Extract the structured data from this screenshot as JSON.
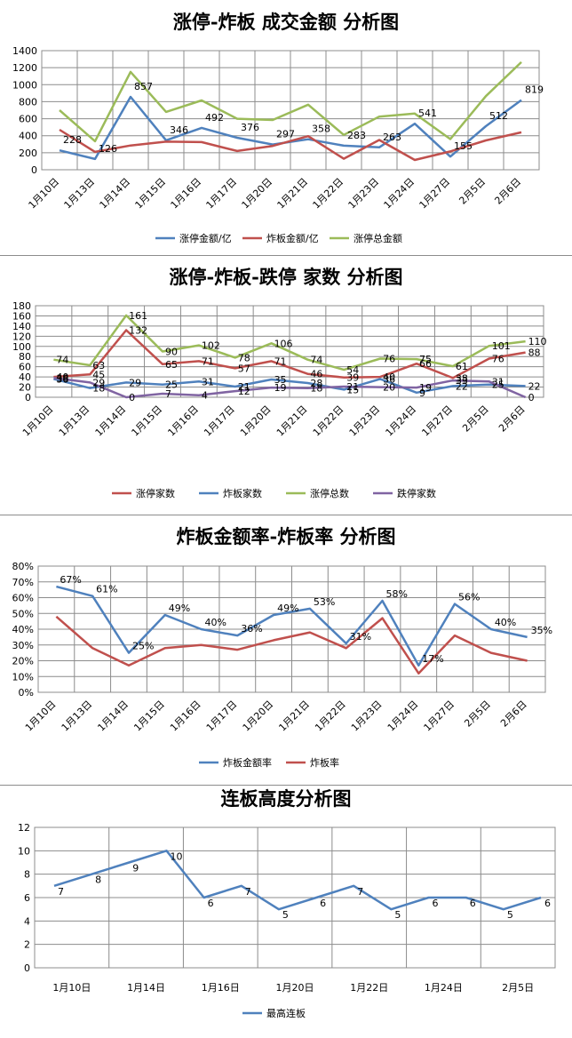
{
  "chart_data": [
    {
      "type": "line",
      "title": "涨停-炸板 成交金额 分析图",
      "categories": [
        "1月10日",
        "1月13日",
        "1月14日",
        "1月15日",
        "1月16日",
        "1月17日",
        "1月20日",
        "1月21日",
        "1月22日",
        "1月23日",
        "1月24日",
        "1月27日",
        "2月5日",
        "2月6日"
      ],
      "ylim": [
        0,
        1400
      ],
      "yticks": [
        "0",
        "200",
        "400",
        "600",
        "800",
        "1000",
        "1200",
        "1400"
      ],
      "grid": true,
      "legend_position": "bottom",
      "series": [
        {
          "name": "涨停金额/亿",
          "color": "#4f81bd",
          "values": [
            228,
            126,
            857,
            346,
            492,
            376,
            297,
            358,
            283,
            263,
            541,
            155,
            512,
            819
          ]
        },
        {
          "name": "炸板金额/亿",
          "color": "#c0504d",
          "values": [
            470,
            210,
            285,
            330,
            325,
            220,
            280,
            395,
            130,
            350,
            115,
            215,
            345,
            440
          ]
        },
        {
          "name": "涨停总金额",
          "color": "#9bbb59",
          "values": [
            700,
            335,
            1150,
            680,
            815,
            600,
            585,
            765,
            410,
            625,
            660,
            360,
            865,
            1265
          ]
        }
      ],
      "data_labels": [
        228,
        126,
        857,
        346,
        492,
        376,
        297,
        358,
        283,
        263,
        541,
        155,
        512,
        819
      ]
    },
    {
      "type": "line",
      "title": "涨停-炸板-跌停 家数 分析图",
      "categories": [
        "1月10日",
        "1月13日",
        "1月14日",
        "1月15日",
        "1月16日",
        "1月17日",
        "1月20日",
        "1月21日",
        "1月22日",
        "1月23日",
        "1月24日",
        "1月27日",
        "2月5日",
        "2月6日"
      ],
      "ylim": [
        0,
        180
      ],
      "yticks": [
        "0",
        "20",
        "40",
        "60",
        "80",
        "100",
        "120",
        "140",
        "160",
        "180"
      ],
      "grid": true,
      "legend_position": "bottom",
      "series": [
        {
          "name": "涨停家数",
          "color": "#c0504d",
          "values": [
            40,
            45,
            132,
            65,
            71,
            57,
            71,
            46,
            39,
            40,
            66,
            38,
            76,
            88
          ]
        },
        {
          "name": "炸板家数",
          "color": "#4f81bd",
          "values": [
            36,
            18,
            29,
            25,
            31,
            21,
            35,
            28,
            15,
            36,
            9,
            22,
            25,
            22
          ]
        },
        {
          "name": "涨停总数",
          "color": "#9bbb59",
          "values": [
            74,
            63,
            161,
            90,
            102,
            78,
            106,
            74,
            54,
            76,
            75,
            61,
            101,
            110
          ]
        },
        {
          "name": "跌停家数",
          "color": "#8064a2",
          "values": [
            38,
            29,
            0,
            7,
            4,
            12,
            19,
            18,
            21,
            20,
            19,
            33,
            31,
            0
          ]
        }
      ],
      "data_labels": {
        "涨停家数": [
          40,
          45,
          132,
          65,
          71,
          57,
          71,
          46,
          39,
          40,
          66,
          38,
          76,
          88
        ],
        "炸板家数": [
          36,
          18,
          29,
          25,
          31,
          21,
          35,
          28,
          15,
          36,
          9,
          22,
          25,
          22
        ],
        "涨停总数": [
          74,
          63,
          161,
          90,
          102,
          78,
          106,
          74,
          54,
          76,
          75,
          61,
          101,
          110
        ],
        "跌停家数": [
          38,
          29,
          0,
          7,
          4,
          12,
          19,
          18,
          21,
          20,
          19,
          33,
          31,
          0
        ]
      }
    },
    {
      "type": "line",
      "title": "炸板金额率-炸板率 分析图",
      "categories": [
        "1月10日",
        "1月13日",
        "1月14日",
        "1月15日",
        "1月16日",
        "1月17日",
        "1月20日",
        "1月21日",
        "1月22日",
        "1月23日",
        "1月24日",
        "1月27日",
        "2月5日",
        "2月6日"
      ],
      "ylim": [
        0,
        80
      ],
      "yticks": [
        "0%",
        "10%",
        "20%",
        "30%",
        "40%",
        "50%",
        "60%",
        "70%",
        "80%"
      ],
      "grid": true,
      "legend_position": "bottom",
      "series": [
        {
          "name": "炸板金额率",
          "color": "#4f81bd",
          "values": [
            67,
            61,
            25,
            49,
            40,
            36,
            49,
            53,
            31,
            58,
            17,
            56,
            40,
            35
          ]
        },
        {
          "name": "炸板率",
          "color": "#c0504d",
          "values": [
            48,
            28,
            17,
            28,
            30,
            27,
            33,
            38,
            28,
            47,
            12,
            36,
            25,
            20
          ]
        }
      ],
      "data_labels": [
        "67%",
        "61%",
        "25%",
        "49%",
        "40%",
        "36%",
        "49%",
        "53%",
        "31%",
        "58%",
        "17%",
        "56%",
        "40%",
        "35%"
      ]
    },
    {
      "type": "line",
      "title": "连板高度分析图",
      "categories": [
        "1月10日",
        "1月13日",
        "1月14日",
        "1月15日",
        "1月16日",
        "1月17日",
        "1月20日",
        "1月21日",
        "1月22日",
        "1月23日",
        "1月24日",
        "1月27日",
        "2月5日",
        "2月6日"
      ],
      "xtick_labels": [
        "1月10日",
        "1月14日",
        "1月16日",
        "1月20日",
        "1月22日",
        "1月24日",
        "2月5日"
      ],
      "ylim": [
        0,
        12
      ],
      "yticks": [
        "0",
        "2",
        "4",
        "6",
        "8",
        "10",
        "12"
      ],
      "grid": true,
      "legend_position": "bottom",
      "series": [
        {
          "name": "最高连板",
          "color": "#4f81bd",
          "values": [
            7,
            8,
            9,
            10,
            6,
            7,
            5,
            6,
            7,
            5,
            6,
            6,
            5,
            6
          ]
        }
      ],
      "data_labels": [
        7,
        8,
        9,
        10,
        6,
        7,
        5,
        6,
        7,
        5,
        6,
        6,
        5,
        6
      ]
    }
  ]
}
